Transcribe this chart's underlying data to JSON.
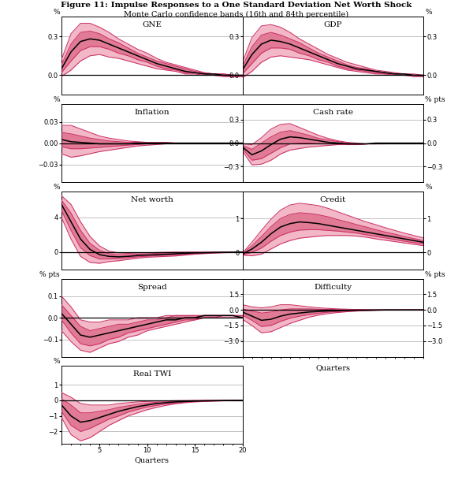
{
  "title": "Figure 11: Impulse Responses to a One Standard Deviation Net Worth Shock",
  "subtitle": "Monte Carlo confidence bands (16th and 84th percentile)",
  "quarters": [
    1,
    2,
    3,
    4,
    5,
    6,
    7,
    8,
    9,
    10,
    11,
    12,
    13,
    14,
    15,
    16,
    17,
    18,
    19,
    20
  ],
  "colors": {
    "median": "#000000",
    "band_outer": "#e8a0b4",
    "band_inner": "#d06080",
    "line_outer": "#cc3366",
    "line_inner": "#cc3366"
  },
  "panels": {
    "GNE": {
      "ylabel_left": "%",
      "ylabel_right": "%",
      "ylim": [
        -0.15,
        0.45
      ],
      "yticks": [
        0.0,
        0.3
      ],
      "median": [
        0.05,
        0.18,
        0.26,
        0.28,
        0.27,
        0.24,
        0.21,
        0.18,
        0.15,
        0.12,
        0.09,
        0.07,
        0.05,
        0.03,
        0.02,
        0.01,
        0.01,
        0.0,
        0.0,
        0.0
      ],
      "upper": [
        0.12,
        0.32,
        0.4,
        0.4,
        0.37,
        0.33,
        0.28,
        0.24,
        0.2,
        0.17,
        0.13,
        0.1,
        0.08,
        0.06,
        0.04,
        0.02,
        0.01,
        0.01,
        0.0,
        0.0
      ],
      "lower": [
        -0.01,
        0.04,
        0.11,
        0.15,
        0.16,
        0.14,
        0.13,
        0.11,
        0.09,
        0.07,
        0.05,
        0.04,
        0.03,
        0.01,
        0.01,
        0.0,
        0.0,
        -0.01,
        -0.01,
        -0.01
      ],
      "inner_upper": [
        0.08,
        0.24,
        0.33,
        0.34,
        0.32,
        0.28,
        0.25,
        0.21,
        0.17,
        0.14,
        0.11,
        0.09,
        0.07,
        0.05,
        0.03,
        0.02,
        0.01,
        0.01,
        0.0,
        0.0
      ],
      "inner_lower": [
        0.02,
        0.11,
        0.19,
        0.22,
        0.22,
        0.2,
        0.17,
        0.15,
        0.12,
        0.1,
        0.07,
        0.05,
        0.04,
        0.02,
        0.02,
        0.01,
        0.0,
        0.0,
        -0.01,
        -0.01
      ]
    },
    "GDP": {
      "ylabel_left": "",
      "ylabel_right": "%",
      "ylim": [
        -0.15,
        0.45
      ],
      "yticks": [
        0.0,
        0.3
      ],
      "median": [
        0.04,
        0.16,
        0.24,
        0.27,
        0.26,
        0.24,
        0.21,
        0.18,
        0.15,
        0.12,
        0.09,
        0.07,
        0.05,
        0.04,
        0.03,
        0.02,
        0.01,
        0.01,
        0.0,
        0.0
      ],
      "upper": [
        0.1,
        0.29,
        0.38,
        0.39,
        0.37,
        0.33,
        0.28,
        0.24,
        0.2,
        0.16,
        0.13,
        0.1,
        0.08,
        0.06,
        0.04,
        0.03,
        0.02,
        0.01,
        0.01,
        0.0
      ],
      "lower": [
        -0.02,
        0.03,
        0.1,
        0.14,
        0.15,
        0.14,
        0.13,
        0.12,
        0.1,
        0.08,
        0.06,
        0.04,
        0.03,
        0.02,
        0.01,
        0.01,
        0.0,
        0.0,
        -0.01,
        -0.01
      ],
      "inner_upper": [
        0.07,
        0.22,
        0.31,
        0.33,
        0.31,
        0.28,
        0.25,
        0.21,
        0.17,
        0.14,
        0.11,
        0.08,
        0.06,
        0.05,
        0.03,
        0.02,
        0.01,
        0.01,
        0.0,
        0.0
      ],
      "inner_lower": [
        0.01,
        0.09,
        0.17,
        0.21,
        0.21,
        0.2,
        0.17,
        0.15,
        0.12,
        0.1,
        0.07,
        0.05,
        0.04,
        0.03,
        0.02,
        0.01,
        0.01,
        0.0,
        0.0,
        -0.01
      ]
    },
    "Inflation": {
      "ylabel_left": "%",
      "ylabel_right": "",
      "ylim": [
        -0.055,
        0.055
      ],
      "yticks": [
        -0.03,
        0.0,
        0.03
      ],
      "median": [
        0.005,
        0.002,
        0.001,
        0.0,
        -0.001,
        -0.001,
        -0.001,
        -0.001,
        0.0,
        0.0,
        0.0,
        0.0,
        0.0,
        0.0,
        0.0,
        0.0,
        0.0,
        0.0,
        0.0,
        0.0
      ],
      "upper": [
        0.025,
        0.025,
        0.02,
        0.015,
        0.01,
        0.007,
        0.005,
        0.003,
        0.002,
        0.001,
        0.001,
        0.001,
        0.0,
        0.0,
        0.0,
        0.0,
        0.0,
        0.0,
        0.0,
        0.0
      ],
      "lower": [
        -0.015,
        -0.02,
        -0.018,
        -0.015,
        -0.012,
        -0.01,
        -0.008,
        -0.006,
        -0.004,
        -0.003,
        -0.002,
        -0.001,
        -0.001,
        0.0,
        0.0,
        0.0,
        0.0,
        0.0,
        0.0,
        0.0
      ],
      "inner_upper": [
        0.015,
        0.013,
        0.01,
        0.007,
        0.005,
        0.003,
        0.002,
        0.001,
        0.001,
        0.0,
        0.0,
        0.0,
        0.0,
        0.0,
        0.0,
        0.0,
        0.0,
        0.0,
        0.0,
        0.0
      ],
      "inner_lower": [
        -0.005,
        -0.008,
        -0.008,
        -0.007,
        -0.006,
        -0.005,
        -0.004,
        -0.003,
        -0.002,
        -0.001,
        -0.001,
        0.0,
        0.0,
        0.0,
        0.0,
        0.0,
        0.0,
        0.0,
        0.0,
        0.0
      ]
    },
    "Cash rate": {
      "ylabel_left": "",
      "ylabel_right": "% pts",
      "ylim": [
        -0.5,
        0.5
      ],
      "yticks": [
        -0.3,
        0.0,
        0.3
      ],
      "median": [
        -0.05,
        -0.15,
        -0.1,
        -0.02,
        0.05,
        0.08,
        0.07,
        0.05,
        0.03,
        0.01,
        0.0,
        -0.01,
        -0.01,
        -0.01,
        0.0,
        0.0,
        0.0,
        0.0,
        0.0,
        0.0
      ],
      "upper": [
        -0.01,
        -0.02,
        0.07,
        0.18,
        0.24,
        0.25,
        0.2,
        0.15,
        0.1,
        0.06,
        0.03,
        0.01,
        0.0,
        -0.01,
        -0.01,
        0.0,
        0.0,
        0.0,
        0.0,
        0.0
      ],
      "lower": [
        -0.1,
        -0.28,
        -0.27,
        -0.22,
        -0.14,
        -0.09,
        -0.07,
        -0.05,
        -0.04,
        -0.03,
        -0.02,
        -0.02,
        -0.02,
        -0.01,
        -0.01,
        -0.01,
        0.0,
        0.0,
        0.0,
        0.0
      ],
      "inner_upper": [
        -0.03,
        -0.08,
        0.0,
        0.08,
        0.14,
        0.16,
        0.13,
        0.1,
        0.06,
        0.04,
        0.02,
        0.0,
        -0.01,
        -0.01,
        0.0,
        0.0,
        0.0,
        0.0,
        0.0,
        0.0
      ],
      "inner_lower": [
        -0.07,
        -0.22,
        -0.2,
        -0.13,
        -0.06,
        -0.01,
        0.0,
        0.0,
        -0.01,
        -0.01,
        -0.01,
        -0.01,
        -0.02,
        -0.01,
        -0.01,
        0.0,
        0.0,
        0.0,
        0.0,
        0.0
      ]
    },
    "Net worth": {
      "ylabel_left": "%",
      "ylabel_right": "",
      "ylim": [
        -2.0,
        7.0
      ],
      "yticks": [
        0,
        4
      ],
      "median": [
        5.5,
        3.5,
        1.5,
        0.3,
        -0.3,
        -0.5,
        -0.55,
        -0.5,
        -0.4,
        -0.35,
        -0.3,
        -0.25,
        -0.2,
        -0.15,
        -0.1,
        -0.08,
        -0.05,
        -0.03,
        -0.02,
        0.0
      ],
      "upper": [
        6.5,
        5.5,
        3.5,
        1.8,
        0.7,
        0.1,
        -0.1,
        -0.15,
        -0.1,
        -0.08,
        -0.05,
        -0.02,
        0.0,
        0.0,
        0.0,
        0.0,
        0.0,
        0.0,
        0.0,
        0.0
      ],
      "lower": [
        4.0,
        1.5,
        -0.5,
        -1.2,
        -1.3,
        -1.1,
        -1.0,
        -0.85,
        -0.7,
        -0.6,
        -0.55,
        -0.5,
        -0.45,
        -0.35,
        -0.25,
        -0.18,
        -0.12,
        -0.08,
        -0.05,
        -0.02
      ],
      "inner_upper": [
        6.0,
        4.5,
        2.5,
        1.0,
        0.2,
        -0.2,
        -0.3,
        -0.3,
        -0.25,
        -0.2,
        -0.15,
        -0.1,
        -0.08,
        -0.05,
        -0.03,
        -0.02,
        -0.01,
        0.0,
        0.0,
        0.0
      ],
      "inner_lower": [
        4.8,
        2.5,
        0.5,
        -0.4,
        -0.8,
        -0.8,
        -0.75,
        -0.65,
        -0.55,
        -0.48,
        -0.42,
        -0.37,
        -0.32,
        -0.25,
        -0.18,
        -0.12,
        -0.08,
        -0.05,
        -0.03,
        -0.01
      ]
    },
    "Credit": {
      "ylabel_left": "",
      "ylabel_right": "%",
      "ylim": [
        -0.5,
        1.8
      ],
      "yticks": [
        0,
        1
      ],
      "median": [
        -0.05,
        0.1,
        0.3,
        0.55,
        0.75,
        0.85,
        0.9,
        0.88,
        0.85,
        0.8,
        0.75,
        0.7,
        0.65,
        0.6,
        0.55,
        0.5,
        0.45,
        0.4,
        0.35,
        0.3
      ],
      "upper": [
        -0.02,
        0.3,
        0.65,
        0.98,
        1.25,
        1.4,
        1.45,
        1.42,
        1.38,
        1.3,
        1.2,
        1.1,
        1.0,
        0.9,
        0.82,
        0.73,
        0.65,
        0.57,
        0.5,
        0.43
      ],
      "lower": [
        -0.08,
        -0.1,
        -0.05,
        0.1,
        0.25,
        0.35,
        0.42,
        0.45,
        0.48,
        0.5,
        0.5,
        0.5,
        0.48,
        0.45,
        0.4,
        0.36,
        0.32,
        0.28,
        0.24,
        0.2
      ],
      "inner_upper": [
        -0.03,
        0.2,
        0.47,
        0.76,
        1.0,
        1.12,
        1.17,
        1.15,
        1.11,
        1.05,
        0.97,
        0.9,
        0.82,
        0.75,
        0.67,
        0.6,
        0.54,
        0.47,
        0.41,
        0.35
      ],
      "inner_lower": [
        -0.07,
        0.0,
        0.13,
        0.33,
        0.5,
        0.6,
        0.66,
        0.67,
        0.67,
        0.65,
        0.63,
        0.6,
        0.57,
        0.52,
        0.47,
        0.43,
        0.38,
        0.33,
        0.29,
        0.25
      ]
    },
    "Spread": {
      "ylabel_left": "% pts",
      "ylabel_right": "",
      "ylim": [
        -0.18,
        0.18
      ],
      "yticks": [
        -0.1,
        0.0,
        0.1
      ],
      "median": [
        0.02,
        -0.03,
        -0.08,
        -0.09,
        -0.08,
        -0.07,
        -0.06,
        -0.05,
        -0.04,
        -0.03,
        -0.02,
        -0.01,
        -0.01,
        0.0,
        0.0,
        0.01,
        0.01,
        0.01,
        0.01,
        0.0
      ],
      "upper": [
        0.1,
        0.05,
        -0.01,
        -0.02,
        -0.02,
        -0.01,
        -0.01,
        -0.01,
        0.0,
        0.0,
        0.0,
        0.01,
        0.01,
        0.01,
        0.01,
        0.01,
        0.01,
        0.01,
        0.01,
        0.01
      ],
      "lower": [
        -0.06,
        -0.11,
        -0.15,
        -0.16,
        -0.14,
        -0.12,
        -0.11,
        -0.09,
        -0.08,
        -0.06,
        -0.05,
        -0.04,
        -0.03,
        -0.02,
        -0.01,
        0.0,
        0.0,
        0.0,
        0.0,
        0.0
      ],
      "inner_upper": [
        0.06,
        0.01,
        -0.04,
        -0.06,
        -0.05,
        -0.04,
        -0.03,
        -0.03,
        -0.02,
        -0.01,
        -0.01,
        0.0,
        0.01,
        0.01,
        0.01,
        0.01,
        0.01,
        0.01,
        0.01,
        0.01
      ],
      "inner_lower": [
        -0.01,
        -0.07,
        -0.12,
        -0.13,
        -0.12,
        -0.1,
        -0.09,
        -0.07,
        -0.06,
        -0.05,
        -0.04,
        -0.03,
        -0.02,
        -0.01,
        -0.01,
        0.0,
        0.0,
        0.01,
        0.01,
        0.0
      ]
    },
    "Difficulty": {
      "ylabel_left": "",
      "ylabel_right": "% pts",
      "ylim": [
        -4.5,
        3.0
      ],
      "yticks": [
        -3.0,
        -1.5,
        0.0,
        1.5
      ],
      "median": [
        -0.2,
        -0.6,
        -1.0,
        -0.9,
        -0.6,
        -0.4,
        -0.3,
        -0.2,
        -0.15,
        -0.1,
        -0.08,
        -0.05,
        -0.03,
        -0.02,
        -0.01,
        0.0,
        0.0,
        0.0,
        0.0,
        0.0
      ],
      "upper": [
        0.5,
        0.3,
        0.2,
        0.3,
        0.5,
        0.5,
        0.4,
        0.3,
        0.2,
        0.15,
        0.1,
        0.07,
        0.04,
        0.02,
        0.01,
        0.01,
        0.0,
        0.0,
        0.0,
        0.0
      ],
      "lower": [
        -0.9,
        -1.5,
        -2.2,
        -2.1,
        -1.7,
        -1.3,
        -1.0,
        -0.7,
        -0.5,
        -0.35,
        -0.25,
        -0.17,
        -0.11,
        -0.07,
        -0.04,
        -0.02,
        -0.01,
        -0.01,
        0.0,
        0.0
      ],
      "inner_upper": [
        0.1,
        -0.1,
        -0.3,
        -0.2,
        0.0,
        0.1,
        0.1,
        0.1,
        0.07,
        0.05,
        0.03,
        0.02,
        0.01,
        0.01,
        0.0,
        0.0,
        0.0,
        0.0,
        0.0,
        0.0
      ],
      "inner_lower": [
        -0.5,
        -1.0,
        -1.6,
        -1.5,
        -1.1,
        -0.8,
        -0.6,
        -0.45,
        -0.32,
        -0.22,
        -0.16,
        -0.1,
        -0.07,
        -0.04,
        -0.02,
        -0.01,
        -0.01,
        0.0,
        0.0,
        0.0
      ]
    },
    "Real TWI": {
      "ylabel_left": "%",
      "ylabel_right": "",
      "ylim": [
        -2.8,
        2.2
      ],
      "yticks": [
        -2,
        -1,
        0,
        1
      ],
      "median": [
        -0.3,
        -1.0,
        -1.4,
        -1.3,
        -1.1,
        -0.9,
        -0.7,
        -0.55,
        -0.4,
        -0.3,
        -0.2,
        -0.15,
        -0.1,
        -0.07,
        -0.05,
        -0.03,
        -0.02,
        -0.01,
        0.0,
        0.0
      ],
      "upper": [
        0.5,
        0.2,
        -0.2,
        -0.3,
        -0.3,
        -0.3,
        -0.2,
        -0.15,
        -0.1,
        -0.07,
        -0.05,
        -0.03,
        -0.02,
        -0.01,
        0.0,
        0.0,
        0.0,
        0.0,
        0.0,
        0.0
      ],
      "lower": [
        -1.1,
        -2.2,
        -2.6,
        -2.4,
        -2.0,
        -1.6,
        -1.3,
        -1.0,
        -0.8,
        -0.6,
        -0.45,
        -0.32,
        -0.22,
        -0.15,
        -0.1,
        -0.07,
        -0.05,
        -0.03,
        -0.02,
        -0.01
      ],
      "inner_upper": [
        0.1,
        -0.3,
        -0.8,
        -0.8,
        -0.7,
        -0.6,
        -0.45,
        -0.35,
        -0.25,
        -0.18,
        -0.12,
        -0.09,
        -0.06,
        -0.04,
        -0.02,
        -0.01,
        -0.01,
        0.0,
        0.0,
        0.0
      ],
      "inner_lower": [
        -0.7,
        -1.6,
        -2.0,
        -1.8,
        -1.5,
        -1.2,
        -1.0,
        -0.75,
        -0.58,
        -0.43,
        -0.32,
        -0.23,
        -0.16,
        -0.11,
        -0.07,
        -0.04,
        -0.03,
        -0.02,
        -0.01,
        0.0
      ]
    }
  },
  "panel_order": [
    "GNE",
    "GDP",
    "Inflation",
    "Cash rate",
    "Net worth",
    "Credit",
    "Spread",
    "Difficulty",
    "Real TWI"
  ],
  "xticks": [
    5,
    10,
    15,
    20
  ],
  "xlim": [
    1,
    20
  ],
  "minor_xticks": [
    1,
    2,
    3,
    4,
    5,
    6,
    7,
    8,
    9,
    10,
    11,
    12,
    13,
    14,
    15,
    16,
    17,
    18,
    19,
    20
  ]
}
